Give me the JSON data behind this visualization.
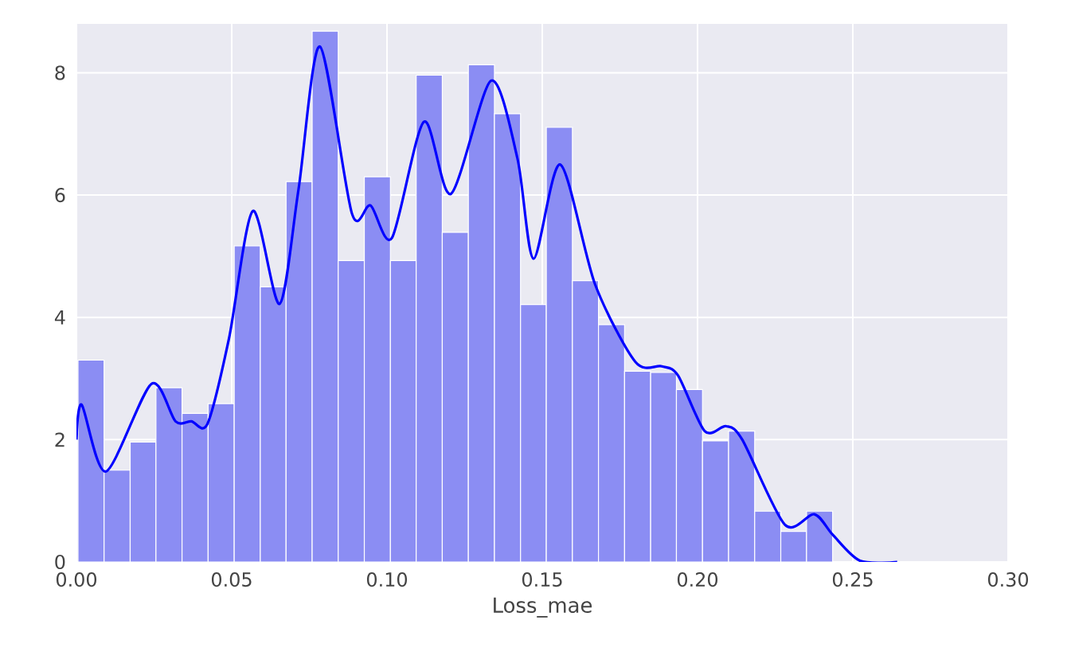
{
  "chart_data": {
    "type": "histogram",
    "xlabel": "Loss_mae",
    "xlim": [
      0,
      0.3
    ],
    "ylim": [
      0,
      8.8
    ],
    "xticks": [
      {
        "value": 0,
        "label": "0.00"
      },
      {
        "value": 0.05,
        "label": "0.05"
      },
      {
        "value": 0.1,
        "label": "0.10"
      },
      {
        "value": 0.15,
        "label": "0.15"
      },
      {
        "value": 0.2,
        "label": "0.20"
      },
      {
        "value": 0.25,
        "label": "0.25"
      },
      {
        "value": 0.3,
        "label": "0.30"
      }
    ],
    "yticks": [
      0,
      2,
      4,
      6,
      8
    ],
    "grid": true,
    "series": [
      {
        "color": "#8b8df3",
        "bins": [
          0.0005,
          0.0089,
          0.0173,
          0.0256,
          0.034,
          0.0424,
          0.0508,
          0.0592,
          0.0675,
          0.0759,
          0.0843,
          0.0927,
          0.1011,
          0.1094,
          0.1178,
          0.1262,
          0.1346,
          0.143,
          0.1513,
          0.1597,
          0.1681,
          0.1765,
          0.1849,
          0.1932,
          0.2016,
          0.21,
          0.2184,
          0.2268,
          0.2351,
          0.2435
        ],
        "values": [
          3.3,
          1.5,
          1.96,
          2.85,
          2.43,
          2.59,
          5.17,
          4.5,
          6.22,
          8.68,
          4.93,
          6.3,
          4.93,
          7.96,
          5.39,
          8.13,
          7.33,
          4.21,
          7.11,
          4.6,
          3.88,
          3.12,
          3.1,
          2.82,
          1.98,
          2.14,
          0.83,
          0.5,
          0.83
        ]
      },
      {
        "type": "line",
        "color": "#0000ff",
        "x": [
          0.0,
          0.0017,
          0.0095,
          0.0241,
          0.0319,
          0.037,
          0.0422,
          0.0491,
          0.0568,
          0.0654,
          0.0715,
          0.0784,
          0.0887,
          0.0947,
          0.1016,
          0.1119,
          0.1206,
          0.1335,
          0.142,
          0.1472,
          0.1558,
          0.167,
          0.18,
          0.1885,
          0.1937,
          0.2023,
          0.2092,
          0.2144,
          0.2281,
          0.2376,
          0.2436,
          0.2523,
          0.2643
        ],
        "values": [
          2.0,
          2.57,
          1.48,
          2.91,
          2.3,
          2.3,
          2.26,
          3.65,
          5.74,
          4.22,
          6.09,
          8.43,
          5.7,
          5.83,
          5.3,
          7.2,
          6.02,
          7.87,
          6.6,
          4.96,
          6.5,
          4.54,
          3.27,
          3.2,
          3.05,
          2.14,
          2.22,
          2.0,
          0.61,
          0.78,
          0.44,
          0.02,
          0.0
        ]
      }
    ]
  }
}
